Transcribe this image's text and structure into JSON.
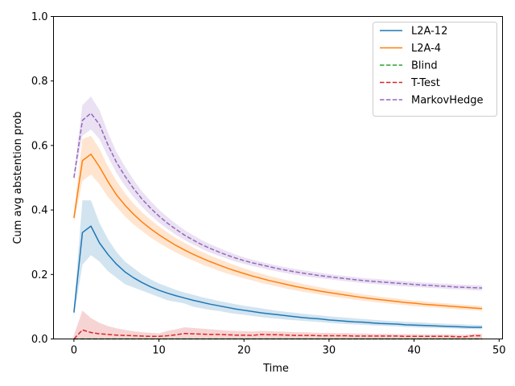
{
  "chart_data": {
    "type": "line",
    "title": "",
    "xlabel": "Time",
    "ylabel": "Cum avg abstention prob",
    "xlim": [
      -2.4,
      50.4
    ],
    "ylim": [
      0,
      1
    ],
    "xticks": [
      0,
      10,
      20,
      30,
      40,
      50
    ],
    "yticks": [
      0.0,
      0.2,
      0.4,
      0.6,
      0.8,
      1.0
    ],
    "legend_position": "top-right",
    "x": [
      0,
      1,
      2,
      3,
      4,
      5,
      6,
      7,
      8,
      9,
      10,
      11,
      12,
      13,
      14,
      15,
      16,
      17,
      18,
      19,
      20,
      21,
      22,
      23,
      24,
      25,
      26,
      27,
      28,
      29,
      30,
      31,
      32,
      33,
      34,
      35,
      36,
      37,
      38,
      39,
      40,
      41,
      42,
      43,
      44,
      45,
      46,
      47,
      48
    ],
    "series": [
      {
        "name": "L2A-12",
        "color": "#1f77b4",
        "dash": "solid",
        "values": [
          0.082,
          0.33,
          0.35,
          0.298,
          0.262,
          0.232,
          0.208,
          0.19,
          0.175,
          0.162,
          0.151,
          0.142,
          0.134,
          0.127,
          0.12,
          0.114,
          0.108,
          0.103,
          0.098,
          0.093,
          0.089,
          0.085,
          0.081,
          0.078,
          0.075,
          0.072,
          0.069,
          0.066,
          0.064,
          0.062,
          0.059,
          0.057,
          0.055,
          0.053,
          0.052,
          0.05,
          0.048,
          0.047,
          0.046,
          0.044,
          0.043,
          0.042,
          0.041,
          0.04,
          0.039,
          0.038,
          0.037,
          0.036,
          0.036
        ],
        "lower": [
          0.07,
          0.23,
          0.26,
          0.24,
          0.21,
          0.19,
          0.17,
          0.16,
          0.15,
          0.14,
          0.13,
          0.12,
          0.115,
          0.11,
          0.1,
          0.095,
          0.09,
          0.087,
          0.082,
          0.078,
          0.075,
          0.071,
          0.068,
          0.065,
          0.063,
          0.06,
          0.058,
          0.056,
          0.054,
          0.052,
          0.05,
          0.048,
          0.046,
          0.045,
          0.044,
          0.042,
          0.041,
          0.04,
          0.039,
          0.037,
          0.036,
          0.035,
          0.034,
          0.034,
          0.033,
          0.032,
          0.031,
          0.031,
          0.03
        ],
        "upper": [
          0.1,
          0.43,
          0.43,
          0.36,
          0.31,
          0.27,
          0.24,
          0.22,
          0.2,
          0.185,
          0.172,
          0.162,
          0.152,
          0.144,
          0.137,
          0.13,
          0.124,
          0.118,
          0.113,
          0.108,
          0.103,
          0.099,
          0.095,
          0.091,
          0.087,
          0.084,
          0.081,
          0.078,
          0.075,
          0.073,
          0.07,
          0.068,
          0.066,
          0.064,
          0.062,
          0.06,
          0.058,
          0.056,
          0.055,
          0.053,
          0.052,
          0.051,
          0.049,
          0.048,
          0.047,
          0.046,
          0.045,
          0.044,
          0.043
        ]
      },
      {
        "name": "L2A-4",
        "color": "#ff7f0e",
        "dash": "solid",
        "values": [
          0.375,
          0.553,
          0.573,
          0.534,
          0.488,
          0.447,
          0.415,
          0.387,
          0.363,
          0.342,
          0.323,
          0.306,
          0.29,
          0.276,
          0.263,
          0.251,
          0.24,
          0.23,
          0.22,
          0.211,
          0.203,
          0.195,
          0.188,
          0.181,
          0.175,
          0.169,
          0.163,
          0.158,
          0.153,
          0.148,
          0.144,
          0.14,
          0.136,
          0.132,
          0.128,
          0.125,
          0.122,
          0.119,
          0.116,
          0.113,
          0.111,
          0.108,
          0.106,
          0.104,
          0.102,
          0.1,
          0.098,
          0.096,
          0.094
        ],
        "lower": [
          0.36,
          0.49,
          0.51,
          0.48,
          0.44,
          0.41,
          0.38,
          0.355,
          0.335,
          0.315,
          0.298,
          0.282,
          0.268,
          0.255,
          0.243,
          0.232,
          0.222,
          0.212,
          0.203,
          0.195,
          0.188,
          0.181,
          0.174,
          0.168,
          0.162,
          0.156,
          0.151,
          0.146,
          0.142,
          0.137,
          0.133,
          0.129,
          0.126,
          0.122,
          0.119,
          0.116,
          0.113,
          0.11,
          0.107,
          0.105,
          0.102,
          0.1,
          0.098,
          0.096,
          0.094,
          0.092,
          0.09,
          0.089,
          0.087
        ],
        "upper": [
          0.39,
          0.62,
          0.63,
          0.59,
          0.535,
          0.49,
          0.452,
          0.42,
          0.393,
          0.37,
          0.349,
          0.33,
          0.313,
          0.298,
          0.284,
          0.271,
          0.259,
          0.248,
          0.238,
          0.228,
          0.219,
          0.21,
          0.203,
          0.195,
          0.189,
          0.182,
          0.176,
          0.17,
          0.165,
          0.16,
          0.155,
          0.151,
          0.147,
          0.142,
          0.138,
          0.135,
          0.131,
          0.128,
          0.125,
          0.122,
          0.119,
          0.117,
          0.114,
          0.112,
          0.11,
          0.108,
          0.106,
          0.104,
          0.102
        ]
      },
      {
        "name": "Blind",
        "color": "#2ca02c",
        "dash": "dashed",
        "values": [
          0,
          0,
          0,
          0,
          0,
          0,
          0,
          0,
          0,
          0,
          0,
          0,
          0,
          0,
          0,
          0,
          0,
          0,
          0,
          0,
          0,
          0,
          0,
          0,
          0,
          0,
          0,
          0,
          0,
          0,
          0,
          0,
          0,
          0,
          0,
          0,
          0,
          0,
          0,
          0,
          0,
          0,
          0,
          0,
          0,
          0,
          0,
          0,
          0
        ]
      },
      {
        "name": "T-Test",
        "color": "#d62728",
        "dash": "dashed",
        "values": [
          0.0,
          0.028,
          0.02,
          0.016,
          0.014,
          0.012,
          0.011,
          0.01,
          0.009,
          0.008,
          0.008,
          0.01,
          0.013,
          0.017,
          0.016,
          0.015,
          0.014,
          0.014,
          0.013,
          0.012,
          0.012,
          0.011,
          0.014,
          0.013,
          0.013,
          0.012,
          0.011,
          0.011,
          0.011,
          0.01,
          0.01,
          0.01,
          0.01,
          0.009,
          0.009,
          0.009,
          0.009,
          0.009,
          0.009,
          0.008,
          0.008,
          0.008,
          0.008,
          0.008,
          0.008,
          0.007,
          0.007,
          0.01,
          0.01
        ],
        "lower": [
          0,
          0,
          0,
          0,
          0,
          0,
          0,
          0,
          0,
          0,
          0,
          0,
          0,
          0,
          0,
          0,
          0,
          0,
          0,
          0,
          0,
          0,
          0,
          0,
          0,
          0,
          0,
          0,
          0,
          0,
          0,
          0,
          0,
          0,
          0,
          0,
          0,
          0,
          0,
          0,
          0,
          0,
          0,
          0,
          0,
          0,
          0,
          0,
          0
        ],
        "upper": [
          0.012,
          0.088,
          0.065,
          0.05,
          0.04,
          0.033,
          0.028,
          0.024,
          0.021,
          0.019,
          0.017,
          0.025,
          0.03,
          0.036,
          0.034,
          0.032,
          0.03,
          0.028,
          0.026,
          0.025,
          0.024,
          0.023,
          0.025,
          0.024,
          0.023,
          0.022,
          0.021,
          0.021,
          0.02,
          0.019,
          0.019,
          0.018,
          0.018,
          0.017,
          0.017,
          0.016,
          0.016,
          0.016,
          0.015,
          0.015,
          0.015,
          0.014,
          0.014,
          0.014,
          0.014,
          0.013,
          0.013,
          0.016,
          0.016
        ]
      },
      {
        "name": "MarkovHedge",
        "color": "#9467bd",
        "dash": "dashed",
        "values": [
          0.5,
          0.678,
          0.7,
          0.665,
          0.602,
          0.548,
          0.505,
          0.467,
          0.434,
          0.406,
          0.381,
          0.359,
          0.34,
          0.322,
          0.307,
          0.293,
          0.281,
          0.27,
          0.26,
          0.251,
          0.243,
          0.236,
          0.23,
          0.224,
          0.218,
          0.213,
          0.208,
          0.204,
          0.2,
          0.196,
          0.193,
          0.19,
          0.187,
          0.184,
          0.181,
          0.179,
          0.177,
          0.175,
          0.173,
          0.171,
          0.169,
          0.167,
          0.166,
          0.164,
          0.163,
          0.161,
          0.16,
          0.159,
          0.158
        ],
        "lower": [
          0.49,
          0.63,
          0.65,
          0.62,
          0.565,
          0.515,
          0.475,
          0.44,
          0.41,
          0.384,
          0.361,
          0.341,
          0.323,
          0.307,
          0.293,
          0.28,
          0.268,
          0.258,
          0.249,
          0.24,
          0.233,
          0.226,
          0.22,
          0.214,
          0.209,
          0.204,
          0.199,
          0.195,
          0.191,
          0.188,
          0.185,
          0.182,
          0.179,
          0.176,
          0.173,
          0.171,
          0.169,
          0.167,
          0.165,
          0.163,
          0.161,
          0.16,
          0.158,
          0.157,
          0.155,
          0.154,
          0.153,
          0.151,
          0.15
        ],
        "upper": [
          0.51,
          0.725,
          0.752,
          0.71,
          0.64,
          0.58,
          0.535,
          0.494,
          0.458,
          0.428,
          0.401,
          0.378,
          0.357,
          0.338,
          0.322,
          0.307,
          0.294,
          0.283,
          0.272,
          0.262,
          0.253,
          0.246,
          0.239,
          0.233,
          0.227,
          0.222,
          0.217,
          0.213,
          0.209,
          0.205,
          0.201,
          0.198,
          0.195,
          0.192,
          0.189,
          0.187,
          0.185,
          0.183,
          0.181,
          0.179,
          0.177,
          0.175,
          0.174,
          0.172,
          0.171,
          0.169,
          0.168,
          0.167,
          0.166
        ]
      }
    ]
  }
}
